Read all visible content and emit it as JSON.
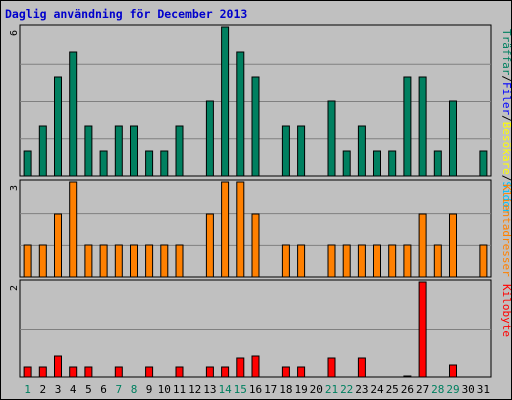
{
  "chart_data": [
    {
      "type": "bar",
      "title": "Daglig användning för December 2013",
      "legend": [
        {
          "name": "Träffar",
          "color": "#008060"
        },
        {
          "name": "Filer",
          "color": "#0000ff"
        },
        {
          "name": "Besökare",
          "color": "#ffff00"
        },
        {
          "name": "Sidor",
          "color": "#00c0ff"
        }
      ],
      "ylim": [
        0,
        6
      ],
      "ytick_label": "6",
      "categories": [
        "1",
        "2",
        "3",
        "4",
        "5",
        "6",
        "7",
        "8",
        "9",
        "10",
        "11",
        "12",
        "13",
        "14",
        "15",
        "16",
        "17",
        "18",
        "19",
        "20",
        "21",
        "22",
        "23",
        "24",
        "25",
        "26",
        "27",
        "28",
        "29",
        "30",
        "31"
      ],
      "weekend_days": [
        "1",
        "7",
        "8",
        "14",
        "15",
        "21",
        "22",
        "28",
        "29"
      ],
      "series": [
        {
          "name": "Träffar",
          "values": [
            1,
            2,
            4,
            5,
            2,
            1,
            2,
            2,
            1,
            1,
            2,
            0,
            3,
            6,
            5,
            4,
            0,
            2,
            2,
            0,
            3,
            1,
            2,
            1,
            1,
            4,
            4,
            1,
            3,
            0,
            1
          ]
        }
      ]
    },
    {
      "type": "bar",
      "legend": [
        {
          "name": "Klientadresser",
          "color": "#ff8000"
        }
      ],
      "ylim": [
        0,
        3
      ],
      "ytick_label": "3",
      "series": [
        {
          "name": "Klientadresser",
          "values": [
            1,
            1,
            2,
            3,
            1,
            1,
            1,
            1,
            1,
            1,
            1,
            0,
            2,
            3,
            3,
            2,
            0,
            1,
            1,
            0,
            1,
            1,
            1,
            1,
            1,
            1,
            2,
            1,
            2,
            0,
            1
          ]
        }
      ]
    },
    {
      "type": "bar",
      "legend": [
        {
          "name": "Kilobyte",
          "color": "#ff0000"
        }
      ],
      "ylim": [
        0,
        2
      ],
      "ytick_label": "2",
      "series": [
        {
          "name": "Kilobyte",
          "values": [
            0.2,
            0.2,
            0.45,
            0.2,
            0.2,
            0,
            0.2,
            0,
            0.2,
            0,
            0.2,
            0,
            0.2,
            0.2,
            0.4,
            0.45,
            0,
            0.2,
            0.2,
            0,
            0.4,
            0,
            0.4,
            0,
            0,
            0.03,
            2,
            0,
            0.25,
            0,
            0
          ]
        }
      ]
    }
  ]
}
